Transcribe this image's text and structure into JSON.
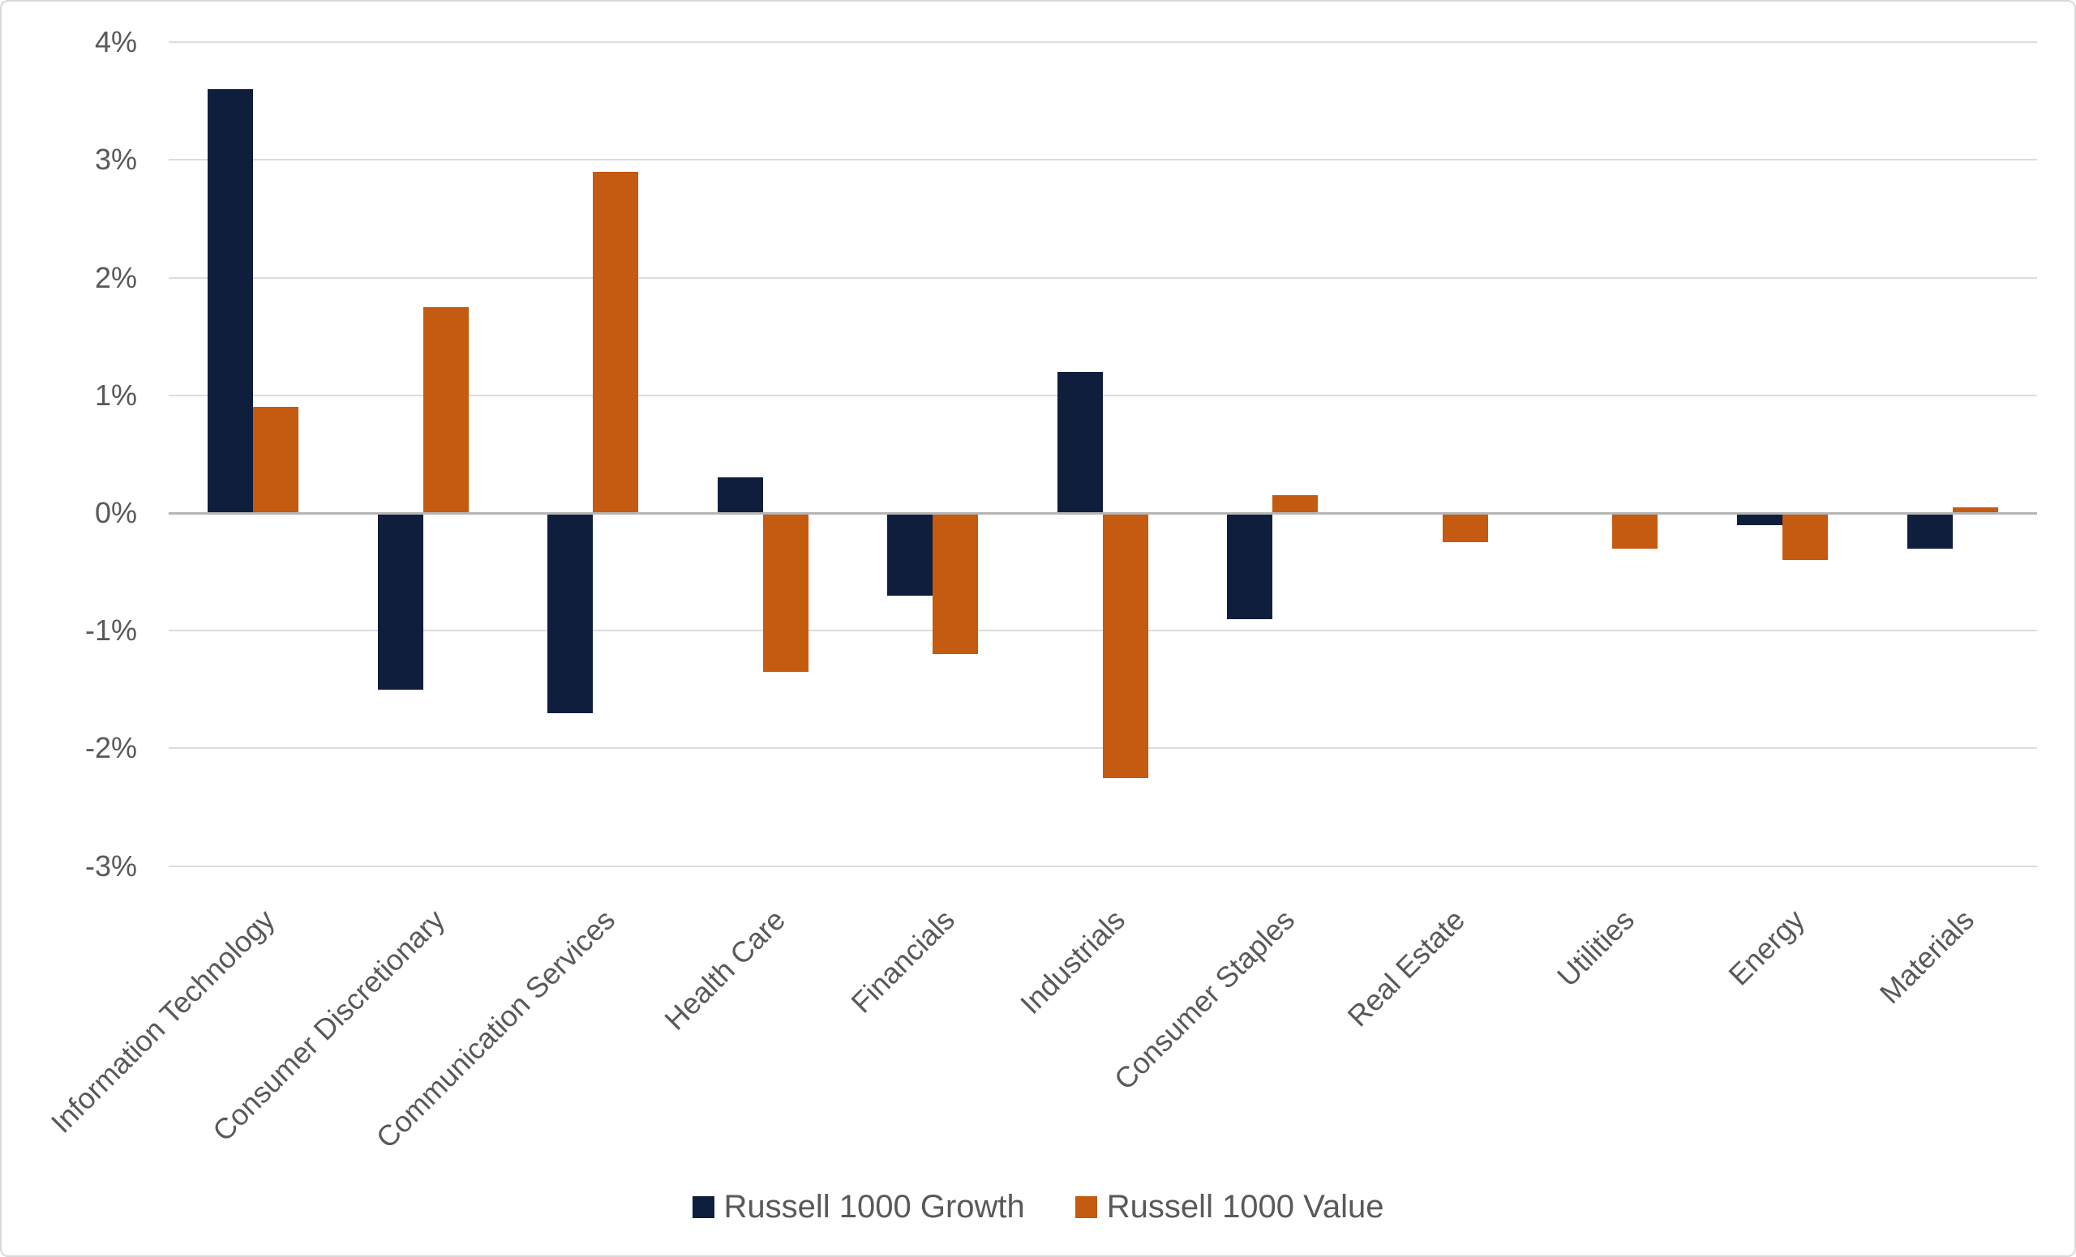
{
  "chart_data": {
    "type": "bar",
    "title": "",
    "categories": [
      "Information Technology",
      "Consumer Discretionary",
      "Communication Services",
      "Health Care",
      "Financials",
      "Industrials",
      "Consumer Staples",
      "Real Estate",
      "Utilities",
      "Energy",
      "Materials"
    ],
    "series": [
      {
        "name": "Russell 1000 Growth",
        "color": "#0F1E3C",
        "values": [
          3.6,
          -1.5,
          -1.7,
          0.3,
          -0.7,
          1.2,
          -0.9,
          0.0,
          0.0,
          -0.1,
          -0.3
        ]
      },
      {
        "name": "Russell 1000 Value",
        "color": "#C55A11",
        "values": [
          0.9,
          1.75,
          2.9,
          -1.35,
          -1.2,
          -2.25,
          0.15,
          -0.25,
          -0.3,
          -0.4,
          0.05
        ]
      }
    ],
    "y_ticks_percent": [
      4,
      3,
      2,
      1,
      0,
      -1,
      -2,
      -3
    ],
    "y_tick_suffix": "%",
    "ylim": [
      -3,
      4
    ],
    "grid": "horizontal",
    "legend_position": "bottom",
    "x_label_rotation_deg": 45,
    "colors": {
      "background": "#FFFFFF",
      "border": "#D9D9D9",
      "gridline": "#DCDCDC",
      "zero_line": "#B5B5B5",
      "text": "#595959"
    }
  }
}
